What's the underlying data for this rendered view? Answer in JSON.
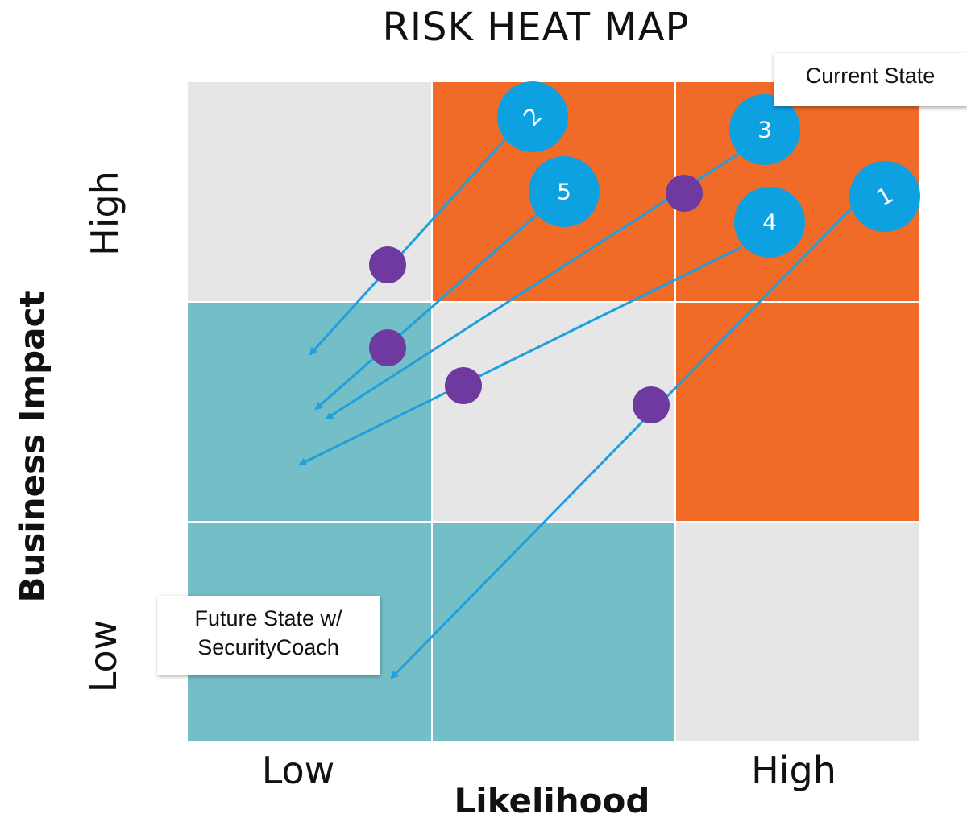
{
  "title": "RISK HEAT MAP",
  "axes": {
    "x_title": "Likelihood",
    "y_title": "Business Impact",
    "x_ticks": [
      "Low",
      "High"
    ],
    "y_ticks": [
      "High",
      "Low"
    ]
  },
  "labels": {
    "current_state": "Current State",
    "future_state_line1": "Future State w/",
    "future_state_line2": "SecurityCoach"
  },
  "grid": {
    "rows": [
      [
        "gray",
        "orange",
        "orange"
      ],
      [
        "teal",
        "gray",
        "orange"
      ],
      [
        "teal",
        "teal",
        "gray"
      ]
    ],
    "colors": {
      "gray": "#e6e6e6",
      "orange": "#f06a28",
      "teal": "#74bec8"
    }
  },
  "colors": {
    "risk_bubble": "#0ea1e2",
    "intermediate_point": "#6e3a9f",
    "arrow": "#1ea0de"
  },
  "risks": [
    {
      "id": "1"
    },
    {
      "id": "2"
    },
    {
      "id": "3"
    },
    {
      "id": "4"
    },
    {
      "id": "5"
    }
  ]
}
